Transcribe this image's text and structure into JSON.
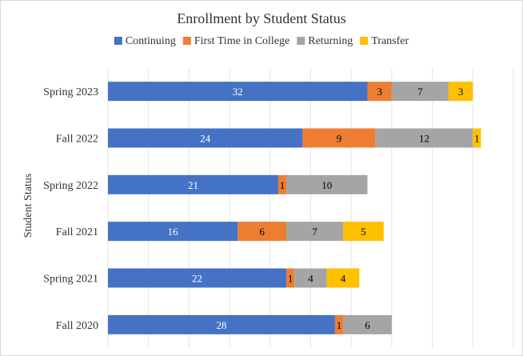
{
  "chart_data": {
    "type": "bar",
    "orientation": "horizontal",
    "stacked": true,
    "title": "Enrollment by Student Status",
    "ylabel": "Student Status",
    "xlabel": "",
    "legend_position": "top",
    "grid": true,
    "xlim": [
      0,
      50
    ],
    "categories": [
      "Spring 2023",
      "Fall 2022",
      "Spring 2022",
      "Fall 2021",
      "Spring 2021",
      "Fall 2020"
    ],
    "series": [
      {
        "name": "Continuing",
        "color": "#4472C4",
        "label_color": "#ffffff",
        "values": [
          32,
          24,
          21,
          16,
          22,
          28
        ]
      },
      {
        "name": "First Time in College",
        "color": "#ED7D31",
        "label_color": "#000000",
        "values": [
          3,
          9,
          1,
          6,
          1,
          1
        ]
      },
      {
        "name": "Returning",
        "color": "#A5A5A5",
        "label_color": "#000000",
        "values": [
          7,
          12,
          10,
          7,
          4,
          6
        ]
      },
      {
        "name": "Transfer",
        "color": "#FFC000",
        "label_color": "#000000",
        "values": [
          3,
          1,
          null,
          5,
          4,
          null
        ]
      }
    ]
  }
}
